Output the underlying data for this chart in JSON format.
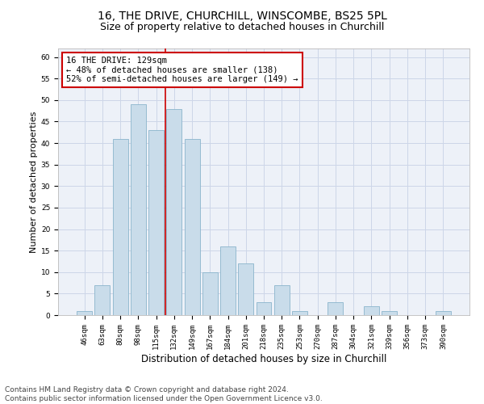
{
  "title1": "16, THE DRIVE, CHURCHILL, WINSCOMBE, BS25 5PL",
  "title2": "Size of property relative to detached houses in Churchill",
  "xlabel": "Distribution of detached houses by size in Churchill",
  "ylabel": "Number of detached properties",
  "categories": [
    "46sqm",
    "63sqm",
    "80sqm",
    "98sqm",
    "115sqm",
    "132sqm",
    "149sqm",
    "167sqm",
    "184sqm",
    "201sqm",
    "218sqm",
    "235sqm",
    "253sqm",
    "270sqm",
    "287sqm",
    "304sqm",
    "321sqm",
    "339sqm",
    "356sqm",
    "373sqm",
    "390sqm"
  ],
  "values": [
    1,
    7,
    41,
    49,
    43,
    48,
    41,
    10,
    16,
    12,
    3,
    7,
    1,
    0,
    3,
    0,
    2,
    1,
    0,
    0,
    1
  ],
  "bar_color": "#c9dcea",
  "bar_edge_color": "#8ab4cc",
  "grid_color": "#cdd6e8",
  "vline_color": "#cc0000",
  "vline_x_idx": 5,
  "annotation_text": "16 THE DRIVE: 129sqm\n← 48% of detached houses are smaller (138)\n52% of semi-detached houses are larger (149) →",
  "annotation_box_color": "#ffffff",
  "annotation_box_edge": "#cc0000",
  "ylim": [
    0,
    62
  ],
  "yticks": [
    0,
    5,
    10,
    15,
    20,
    25,
    30,
    35,
    40,
    45,
    50,
    55,
    60
  ],
  "footer": "Contains HM Land Registry data © Crown copyright and database right 2024.\nContains public sector information licensed under the Open Government Licence v3.0.",
  "title1_fontsize": 10,
  "title2_fontsize": 9,
  "xlabel_fontsize": 8.5,
  "ylabel_fontsize": 8,
  "tick_fontsize": 6.5,
  "annotation_fontsize": 7.5,
  "footer_fontsize": 6.5
}
